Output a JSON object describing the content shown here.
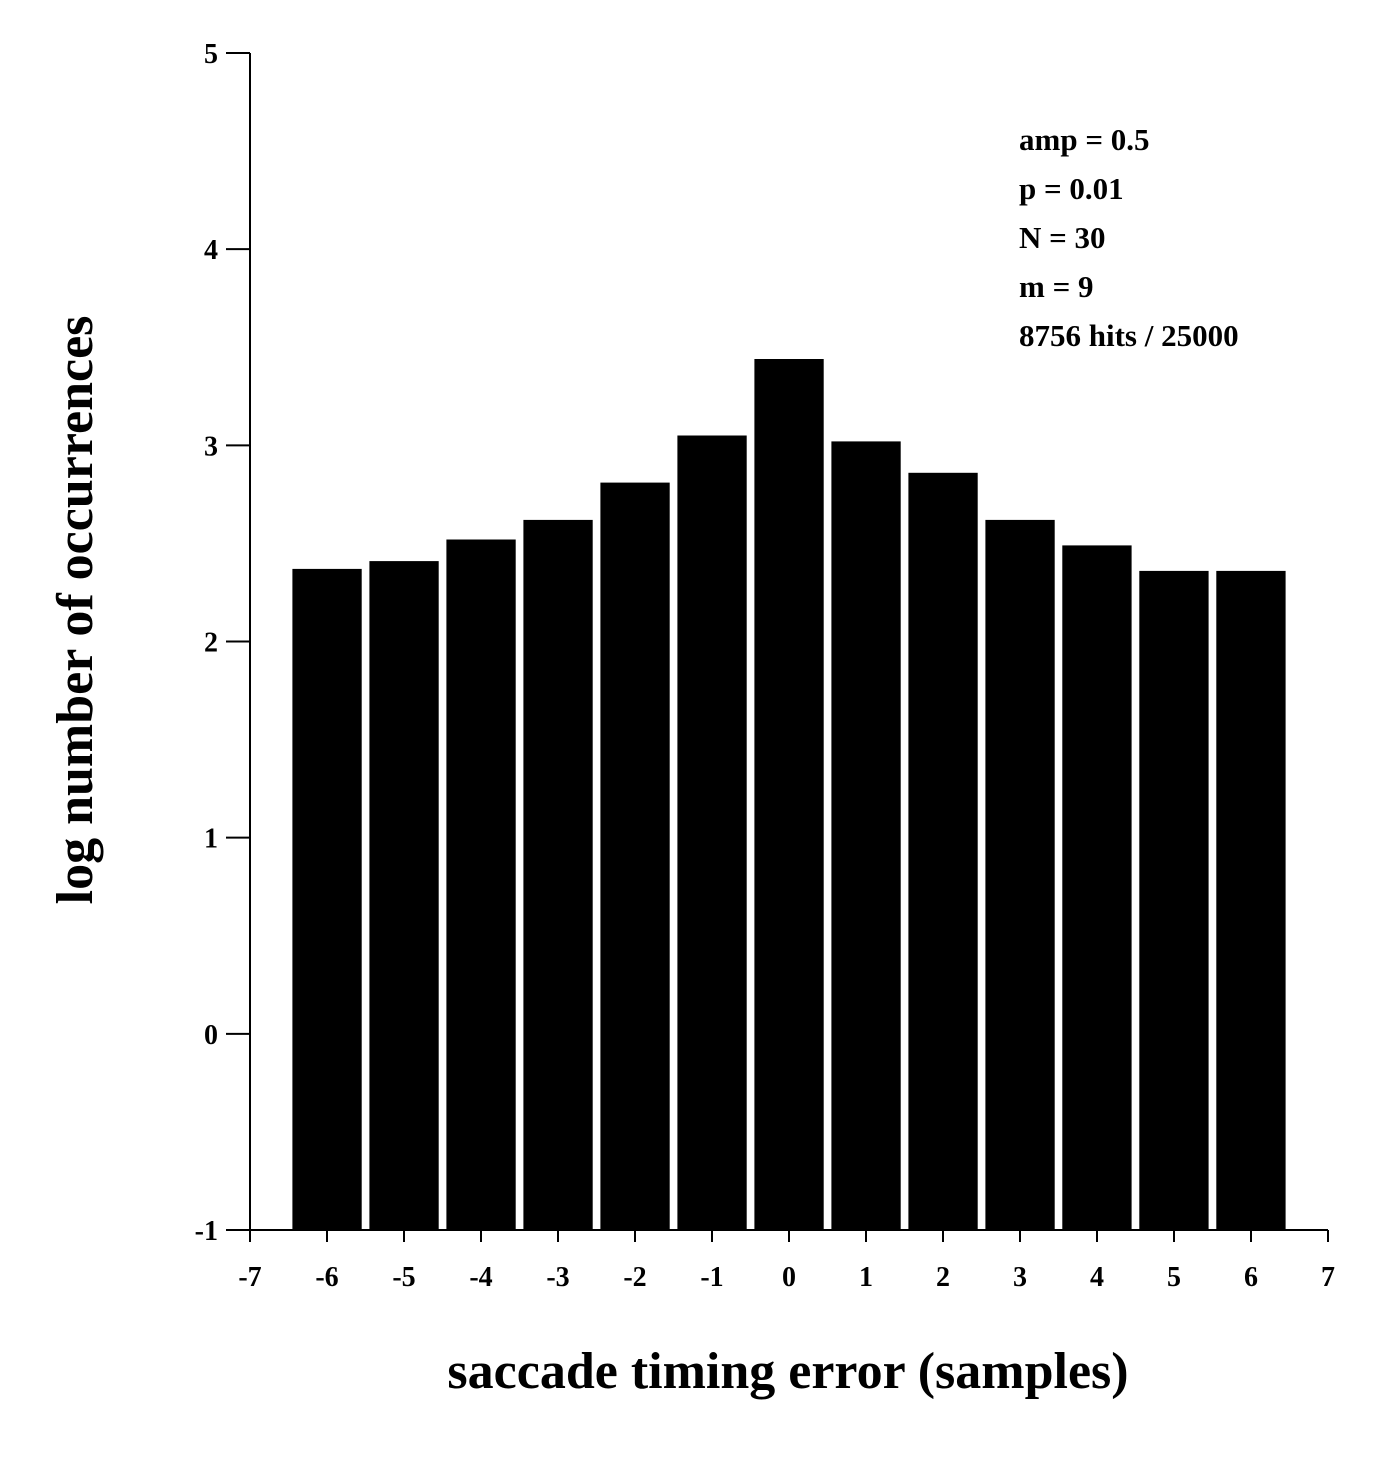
{
  "chart_data": {
    "type": "bar",
    "xlabel": "saccade timing error (samples)",
    "ylabel": "log number of occurrences",
    "xlim": [
      -7,
      7
    ],
    "ylim": [
      -1,
      5
    ],
    "xticks": [
      "-7",
      "-6",
      "-5",
      "-4",
      "-3",
      "-2",
      "-1",
      "0",
      "1",
      "2",
      "3",
      "4",
      "5",
      "6",
      "7"
    ],
    "yticks": [
      "-1",
      "0",
      "1",
      "2",
      "3",
      "4",
      "5"
    ],
    "x": [
      -6,
      -5,
      -4,
      -3,
      -2,
      -1,
      0,
      1,
      2,
      3,
      4,
      5,
      6
    ],
    "values": [
      2.37,
      2.41,
      2.52,
      2.62,
      2.81,
      3.05,
      3.44,
      3.02,
      2.86,
      2.62,
      2.49,
      2.36,
      2.36
    ],
    "bar_color": "#000000",
    "grid": false,
    "annotations": [
      "amp = 0.5",
      "p = 0.01",
      "N = 30",
      "m = 9",
      "8756 hits / 25000"
    ]
  }
}
